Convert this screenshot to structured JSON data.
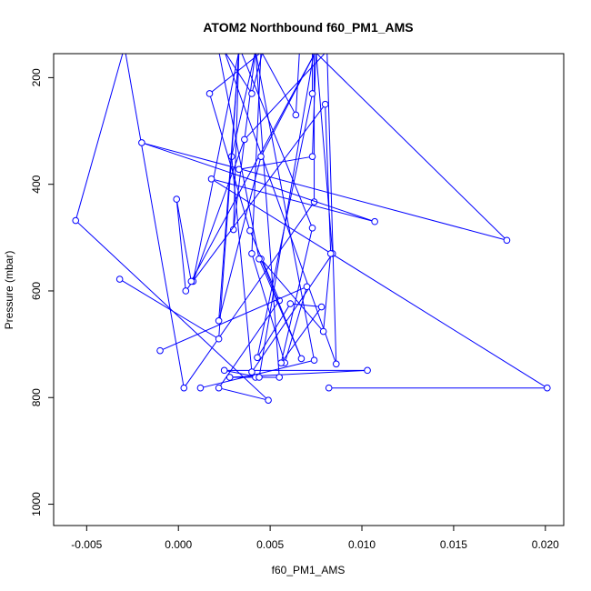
{
  "chart_data": {
    "type": "line",
    "title": "ATOM2 Northbound f60_PM1_AMS",
    "xlabel": "f60_PM1_AMS",
    "ylabel": "Pressure (mbar)",
    "xlim": [
      -0.0068,
      0.021
    ],
    "ylim": [
      1040,
      155
    ],
    "y_axis_inverted": true,
    "grid": false,
    "x_ticks": [
      -0.005,
      0.0,
      0.005,
      0.01,
      0.015,
      0.02
    ],
    "x_tick_labels": [
      "-0.005",
      "0.000",
      "0.005",
      "0.010",
      "0.015",
      "0.020"
    ],
    "y_ticks": [
      200,
      400,
      600,
      800,
      1000
    ],
    "y_tick_labels": [
      "200",
      "400",
      "600",
      "800",
      "1000"
    ],
    "series": [
      {
        "color": "#0000ff",
        "marker": "open-circle",
        "points": [
          {
            "x": -0.003,
            "y": 150,
            "marker": false
          },
          {
            "x": -0.0056,
            "y": 468
          },
          {
            "x": 0.0049,
            "y": 805
          },
          {
            "x": 0.0022,
            "y": 782
          },
          {
            "x": 0.0055,
            "y": 618
          },
          {
            "x": 0.0039,
            "y": 487
          },
          {
            "x": 0.0017,
            "y": 230
          },
          {
            "x": 0.0046,
            "y": 150,
            "marker": false
          },
          {
            "x": 0.004,
            "y": 230
          },
          {
            "x": 0.0025,
            "y": 150,
            "marker": false
          },
          {
            "x": 0.0086,
            "y": 737
          },
          {
            "x": 0.0081,
            "y": 150,
            "marker": false
          },
          {
            "x": 0.0036,
            "y": 316
          },
          {
            "x": 0.0008,
            "y": 582
          },
          {
            "x": 0.0033,
            "y": 150,
            "marker": false
          },
          {
            "x": 0.003,
            "y": 485
          },
          {
            "x": 0.0042,
            "y": 150,
            "marker": false
          },
          {
            "x": 0.0055,
            "y": 762
          },
          {
            "x": 0.0042,
            "y": 762
          },
          {
            "x": 0.0028,
            "y": 762
          },
          {
            "x": 0.0103,
            "y": 749
          },
          {
            "x": 0.0025,
            "y": 749
          },
          {
            "x": 0.0044,
            "y": 762
          },
          {
            "x": 0.0074,
            "y": 150,
            "marker": false
          },
          {
            "x": 0.0074,
            "y": 433
          },
          {
            "x": 0.0003,
            "y": 782
          },
          {
            "x": -0.0029,
            "y": 150,
            "marker": false
          }
        ]
      },
      {
        "color": "#0000ff",
        "marker": "open-circle",
        "points": [
          {
            "x": 0.0082,
            "y": 782
          },
          {
            "x": 0.0201,
            "y": 782
          },
          {
            "x": 0.0018,
            "y": 390
          },
          {
            "x": 0.0107,
            "y": 470
          },
          {
            "x": -0.002,
            "y": 322
          },
          {
            "x": 0.0179,
            "y": 505
          },
          {
            "x": 0.0074,
            "y": 150,
            "marker": false
          }
        ]
      },
      {
        "color": "#0000ff",
        "marker": "open-circle",
        "points": [
          {
            "x": 0.0012,
            "y": 782
          },
          {
            "x": 0.0074,
            "y": 730
          },
          {
            "x": 0.0042,
            "y": 150,
            "marker": false
          },
          {
            "x": 0.0029,
            "y": 348
          },
          {
            "x": 0.004,
            "y": 752
          },
          {
            "x": 0.0084,
            "y": 530
          },
          {
            "x": 0.0075,
            "y": 150,
            "marker": false
          },
          {
            "x": 0.0073,
            "y": 348
          },
          {
            "x": 0.0033,
            "y": 372
          }
        ]
      },
      {
        "color": "#0000ff",
        "marker": "open-circle",
        "points": [
          {
            "x": -0.0032,
            "y": 578
          },
          {
            "x": 0.0022,
            "y": 690
          },
          {
            "x": 0.0033,
            "y": 150,
            "marker": false
          },
          {
            "x": 0.0022,
            "y": 656
          },
          {
            "x": 0.0045,
            "y": 348
          },
          {
            "x": 0.0075,
            "y": 150,
            "marker": false
          },
          {
            "x": 0.0007,
            "y": 582
          },
          {
            "x": -0.0001,
            "y": 428
          },
          {
            "x": 0.0004,
            "y": 600
          },
          {
            "x": 0.008,
            "y": 250
          },
          {
            "x": 0.0083,
            "y": 530
          },
          {
            "x": 0.0079,
            "y": 676
          },
          {
            "x": 0.0045,
            "y": 540
          },
          {
            "x": 0.0067,
            "y": 727
          },
          {
            "x": 0.0044,
            "y": 540
          },
          {
            "x": 0.0022,
            "y": 150,
            "marker": false
          }
        ]
      },
      {
        "color": "#0000ff",
        "marker": "open-circle",
        "points": [
          {
            "x": -0.001,
            "y": 712
          },
          {
            "x": 0.007,
            "y": 592
          },
          {
            "x": 0.0058,
            "y": 735
          },
          {
            "x": 0.004,
            "y": 530
          },
          {
            "x": 0.0045,
            "y": 150,
            "marker": false
          },
          {
            "x": 0.0064,
            "y": 270
          },
          {
            "x": 0.0066,
            "y": 150,
            "marker": false
          },
          {
            "x": 0.0073,
            "y": 150,
            "marker": false
          },
          {
            "x": 0.0073,
            "y": 230
          },
          {
            "x": 0.0043,
            "y": 725
          },
          {
            "x": 0.0061,
            "y": 624
          },
          {
            "x": 0.0078,
            "y": 630
          },
          {
            "x": 0.0056,
            "y": 735
          },
          {
            "x": 0.0073,
            "y": 482
          },
          {
            "x": 0.0034,
            "y": 150,
            "marker": false
          }
        ]
      }
    ]
  }
}
